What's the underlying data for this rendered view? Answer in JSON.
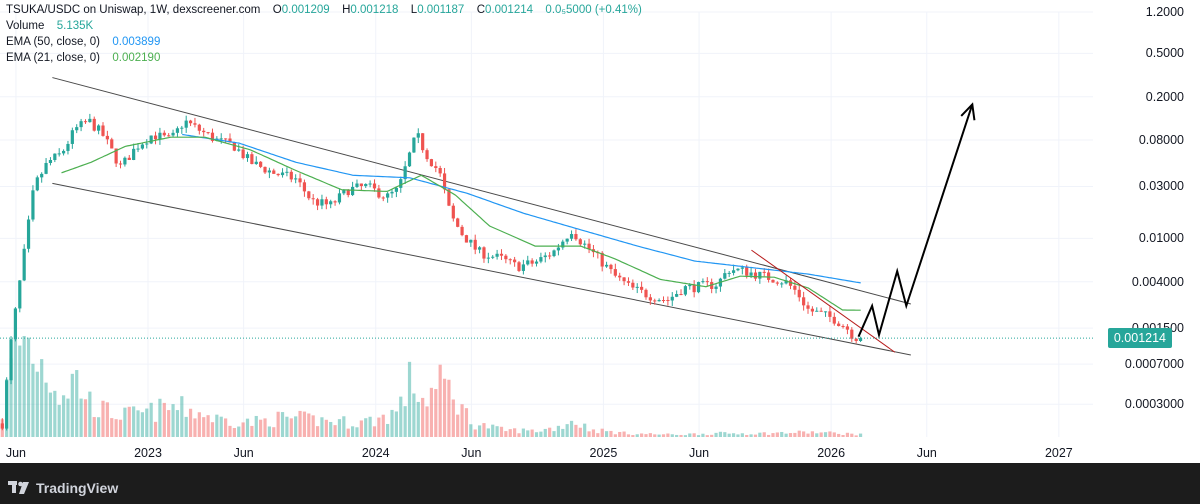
{
  "legend": {
    "symbol_line": "TSUKA/USDC on Uniswap, 1W, dexscreener.com",
    "o_label": "O",
    "o_value": "0.001209",
    "h_label": "H",
    "h_value": "0.001218",
    "l_label": "L",
    "l_value": "0.001187",
    "c_label": "C",
    "c_value": "0.001214",
    "change": "0.0₅5000 (+0.41%)",
    "volume_label": "Volume",
    "volume_value": "5.135K",
    "ema50_label": "EMA (50, close, 0)",
    "ema50_value": "0.003899",
    "ema21_label": "EMA (21, close, 0)",
    "ema21_value": "0.002190"
  },
  "price_tag": "0.001214",
  "footer": {
    "brand": "TradingView",
    "logo_icon": "tradingview-logo-icon"
  },
  "colors": {
    "up": "#26a69a",
    "down": "#ef5350",
    "ema50": "#2196f3",
    "ema21": "#4caf50"
  },
  "chart_data": {
    "type": "candlestick",
    "title": "TSUKA/USDC on Uniswap, 1W, dexscreener.com",
    "y_scale": "log",
    "ylim": [
      0.00015,
      1.2
    ],
    "yticks": [
      {
        "value": 1.2,
        "label": "1.2000"
      },
      {
        "value": 0.5,
        "label": "0.5000"
      },
      {
        "value": 0.2,
        "label": "0.2000"
      },
      {
        "value": 0.08,
        "label": "0.08000"
      },
      {
        "value": 0.03,
        "label": "0.03000"
      },
      {
        "value": 0.01,
        "label": "0.01000"
      },
      {
        "value": 0.004,
        "label": "0.004000"
      },
      {
        "value": 0.0015,
        "label": "0.001500"
      },
      {
        "value": 0.0007,
        "label": "0.0007000"
      },
      {
        "value": 0.0003,
        "label": "0.0003000"
      }
    ],
    "xlim": [
      2022.35,
      2027.15
    ],
    "xticks": [
      {
        "value": 2022.42,
        "label": "Jun"
      },
      {
        "value": 2023.0,
        "label": "2023"
      },
      {
        "value": 2023.42,
        "label": "Jun"
      },
      {
        "value": 2024.0,
        "label": "2024"
      },
      {
        "value": 2024.42,
        "label": "Jun"
      },
      {
        "value": 2025.0,
        "label": "2025"
      },
      {
        "value": 2025.42,
        "label": "Jun"
      },
      {
        "value": 2026.0,
        "label": "2026"
      },
      {
        "value": 2026.42,
        "label": "Jun"
      },
      {
        "value": 2027.0,
        "label": "2027"
      }
    ],
    "last_close": 0.001214,
    "close_anchors": [
      [
        2022.36,
        0.0002
      ],
      [
        2022.4,
        0.0012
      ],
      [
        2022.45,
        0.006
      ],
      [
        2022.5,
        0.03
      ],
      [
        2022.56,
        0.05
      ],
      [
        2022.62,
        0.06
      ],
      [
        2022.68,
        0.1
      ],
      [
        2022.74,
        0.12
      ],
      [
        2022.8,
        0.09
      ],
      [
        2022.88,
        0.045
      ],
      [
        2022.95,
        0.07
      ],
      [
        2023.02,
        0.09
      ],
      [
        2023.1,
        0.08
      ],
      [
        2023.16,
        0.12
      ],
      [
        2023.22,
        0.1
      ],
      [
        2023.3,
        0.08
      ],
      [
        2023.38,
        0.07
      ],
      [
        2023.45,
        0.05
      ],
      [
        2023.55,
        0.04
      ],
      [
        2023.65,
        0.035
      ],
      [
        2023.72,
        0.022
      ],
      [
        2023.8,
        0.02
      ],
      [
        2023.88,
        0.028
      ],
      [
        2023.96,
        0.03
      ],
      [
        2024.05,
        0.024
      ],
      [
        2024.1,
        0.028
      ],
      [
        2024.15,
        0.06
      ],
      [
        2024.18,
        0.09
      ],
      [
        2024.22,
        0.06
      ],
      [
        2024.28,
        0.04
      ],
      [
        2024.33,
        0.016
      ],
      [
        2024.38,
        0.011
      ],
      [
        2024.45,
        0.0075
      ],
      [
        2024.55,
        0.0065
      ],
      [
        2024.62,
        0.0055
      ],
      [
        2024.7,
        0.006
      ],
      [
        2024.78,
        0.0075
      ],
      [
        2024.86,
        0.012
      ],
      [
        2024.9,
        0.0095
      ],
      [
        2024.98,
        0.0065
      ],
      [
        2025.05,
        0.0045
      ],
      [
        2025.12,
        0.0035
      ],
      [
        2025.2,
        0.003
      ],
      [
        2025.28,
        0.0027
      ],
      [
        2025.35,
        0.0035
      ],
      [
        2025.42,
        0.0036
      ],
      [
        2025.5,
        0.0038
      ],
      [
        2025.55,
        0.0052
      ],
      [
        2025.62,
        0.005
      ],
      [
        2025.7,
        0.0045
      ],
      [
        2025.76,
        0.0042
      ],
      [
        2025.8,
        0.004
      ],
      [
        2025.85,
        0.0032
      ],
      [
        2025.9,
        0.0022
      ],
      [
        2025.96,
        0.002
      ],
      [
        2026.02,
        0.0018
      ],
      [
        2026.07,
        0.0015
      ],
      [
        2026.1,
        0.00125
      ],
      [
        2026.13,
        0.001214
      ]
    ],
    "volume_anchors": [
      [
        2022.36,
        0.2
      ],
      [
        2022.4,
        0.6
      ],
      [
        2022.45,
        0.85
      ],
      [
        2022.5,
        0.7
      ],
      [
        2022.56,
        0.55
      ],
      [
        2022.62,
        0.35
      ],
      [
        2022.68,
        0.5
      ],
      [
        2022.74,
        0.3
      ],
      [
        2022.8,
        0.22
      ],
      [
        2022.9,
        0.18
      ],
      [
        2023.0,
        0.2
      ],
      [
        2023.1,
        0.25
      ],
      [
        2023.2,
        0.22
      ],
      [
        2023.3,
        0.15
      ],
      [
        2023.45,
        0.12
      ],
      [
        2023.6,
        0.16
      ],
      [
        2023.75,
        0.14
      ],
      [
        2023.9,
        0.12
      ],
      [
        2024.0,
        0.14
      ],
      [
        2024.1,
        0.22
      ],
      [
        2024.16,
        0.5
      ],
      [
        2024.2,
        0.3
      ],
      [
        2024.3,
        0.45
      ],
      [
        2024.36,
        0.3
      ],
      [
        2024.42,
        0.12
      ],
      [
        2024.55,
        0.06
      ],
      [
        2024.7,
        0.05
      ],
      [
        2024.8,
        0.08
      ],
      [
        2024.86,
        0.14
      ],
      [
        2024.95,
        0.06
      ],
      [
        2025.1,
        0.03
      ],
      [
        2025.3,
        0.02
      ],
      [
        2025.5,
        0.03
      ],
      [
        2025.7,
        0.03
      ],
      [
        2025.9,
        0.04
      ],
      [
        2026.05,
        0.03
      ],
      [
        2026.13,
        0.02
      ]
    ],
    "ema21_anchors": [
      [
        2022.62,
        0.04
      ],
      [
        2022.75,
        0.05
      ],
      [
        2022.9,
        0.07
      ],
      [
        2023.1,
        0.085
      ],
      [
        2023.25,
        0.085
      ],
      [
        2023.45,
        0.065
      ],
      [
        2023.65,
        0.042
      ],
      [
        2023.85,
        0.028
      ],
      [
        2024.05,
        0.027
      ],
      [
        2024.2,
        0.038
      ],
      [
        2024.35,
        0.025
      ],
      [
        2024.5,
        0.013
      ],
      [
        2024.7,
        0.0085
      ],
      [
        2024.9,
        0.0085
      ],
      [
        2025.05,
        0.0065
      ],
      [
        2025.25,
        0.0042
      ],
      [
        2025.45,
        0.0036
      ],
      [
        2025.6,
        0.0045
      ],
      [
        2025.75,
        0.0044
      ],
      [
        2025.9,
        0.0035
      ],
      [
        2026.05,
        0.0022
      ],
      [
        2026.13,
        0.00219
      ]
    ],
    "ema50_anchors": [
      [
        2023.15,
        0.09
      ],
      [
        2023.4,
        0.075
      ],
      [
        2023.65,
        0.05
      ],
      [
        2023.9,
        0.038
      ],
      [
        2024.15,
        0.036
      ],
      [
        2024.4,
        0.026
      ],
      [
        2024.65,
        0.017
      ],
      [
        2024.9,
        0.012
      ],
      [
        2025.15,
        0.0085
      ],
      [
        2025.4,
        0.0062
      ],
      [
        2025.65,
        0.0054
      ],
      [
        2025.9,
        0.0047
      ],
      [
        2026.13,
        0.0039
      ]
    ],
    "wedge_upper": [
      [
        2022.58,
        0.3
      ],
      [
        2026.35,
        0.0025
      ]
    ],
    "wedge_lower": [
      [
        2022.58,
        0.032
      ],
      [
        2026.35,
        0.00085
      ]
    ],
    "red_trendline": [
      [
        2025.65,
        0.0078
      ],
      [
        2026.28,
        0.0009
      ]
    ],
    "projection_path": [
      [
        2026.12,
        0.00125
      ],
      [
        2026.18,
        0.0024
      ],
      [
        2026.21,
        0.0013
      ],
      [
        2026.29,
        0.005
      ],
      [
        2026.33,
        0.0024
      ],
      [
        2026.62,
        0.17
      ]
    ]
  }
}
